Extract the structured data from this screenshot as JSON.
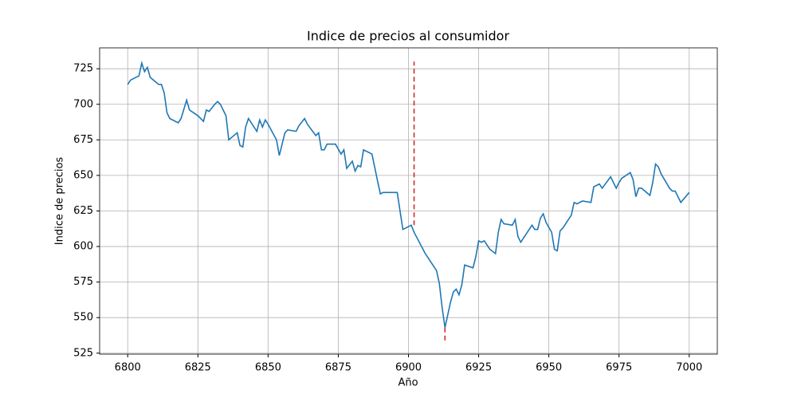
{
  "chart_data": {
    "type": "line",
    "title": "Indice de precios al consumidor",
    "xlabel": "Año",
    "ylabel": "Indice de precios",
    "x": [
      6800,
      6801,
      6804,
      6805,
      6806,
      6807,
      6808,
      6811,
      6812,
      6813,
      6814,
      6815,
      6818,
      6819,
      6821,
      6822,
      6825,
      6827,
      6828,
      6829,
      6831,
      6832,
      6833,
      6835,
      6836,
      6839,
      6840,
      6841,
      6842,
      6843,
      6846,
      6847,
      6848,
      6849,
      6850,
      6853,
      6854,
      6856,
      6857,
      6860,
      6861,
      6863,
      6864,
      6867,
      6868,
      6869,
      6870,
      6871,
      6874,
      6876,
      6877,
      6878,
      6880,
      6881,
      6882,
      6883,
      6884,
      6887,
      6889,
      6890,
      6891,
      6896,
      6897,
      6898,
      6901,
      6902,
      6906,
      6910,
      6911,
      6912,
      6913,
      6914,
      6915,
      6916,
      6917,
      6918,
      6919,
      6920,
      6923,
      6924,
      6925,
      6926,
      6927,
      6929,
      6931,
      6932,
      6933,
      6934,
      6937,
      6938,
      6939,
      6940,
      6941,
      6944,
      6945,
      6946,
      6947,
      6948,
      6949,
      6951,
      6952,
      6953,
      6954,
      6955,
      6958,
      6959,
      6960,
      6962,
      6965,
      6966,
      6968,
      6969,
      6972,
      6974,
      6975,
      6976,
      6979,
      6980,
      6981,
      6982,
      6983,
      6986,
      6987,
      6988,
      6989,
      6990,
      6993,
      6994,
      6995,
      6997,
      7000
    ],
    "series": [
      {
        "color": "#1f77b4",
        "values": [
          714,
          717,
          720,
          729,
          723,
          726,
          719,
          714,
          714,
          708,
          694,
          690,
          687,
          690,
          703,
          696,
          692,
          688,
          696,
          695,
          700,
          702,
          700,
          692,
          675,
          680,
          671,
          670,
          684,
          690,
          681,
          689,
          684,
          689,
          686,
          675,
          664,
          680,
          682,
          681,
          685,
          690,
          686,
          678,
          680,
          668,
          668,
          672,
          672,
          665,
          668,
          655,
          660,
          653,
          657,
          656,
          668,
          665,
          646,
          637,
          638,
          638,
          625,
          612,
          615,
          610,
          595,
          583,
          574,
          557,
          543,
          552,
          561,
          568,
          570,
          566,
          573,
          587,
          585,
          593,
          604,
          603,
          604,
          598,
          595,
          610,
          619,
          616,
          615,
          619,
          607,
          603,
          606,
          615,
          612,
          612,
          620,
          623,
          617,
          610,
          598,
          597,
          611,
          613,
          622,
          631,
          630,
          632,
          631,
          642,
          644,
          641,
          649,
          641,
          645,
          648,
          652,
          647,
          635,
          641,
          641,
          636,
          645,
          658,
          656,
          651,
          641,
          639,
          639,
          631,
          638
        ]
      }
    ],
    "vlines": [
      {
        "x": 6902,
        "ymin": 615,
        "ymax": 730,
        "color": "#d62728"
      },
      {
        "x": 6913,
        "ymin": 534,
        "ymax": 543,
        "color": "#d62728"
      }
    ],
    "xlim": [
      6790,
      7010
    ],
    "ylim": [
      524.3,
      739.7
    ],
    "xticks": [
      6800,
      6825,
      6850,
      6875,
      6900,
      6925,
      6950,
      6975,
      7000
    ],
    "yticks": [
      525,
      550,
      575,
      600,
      625,
      650,
      675,
      700,
      725
    ],
    "grid": true
  }
}
